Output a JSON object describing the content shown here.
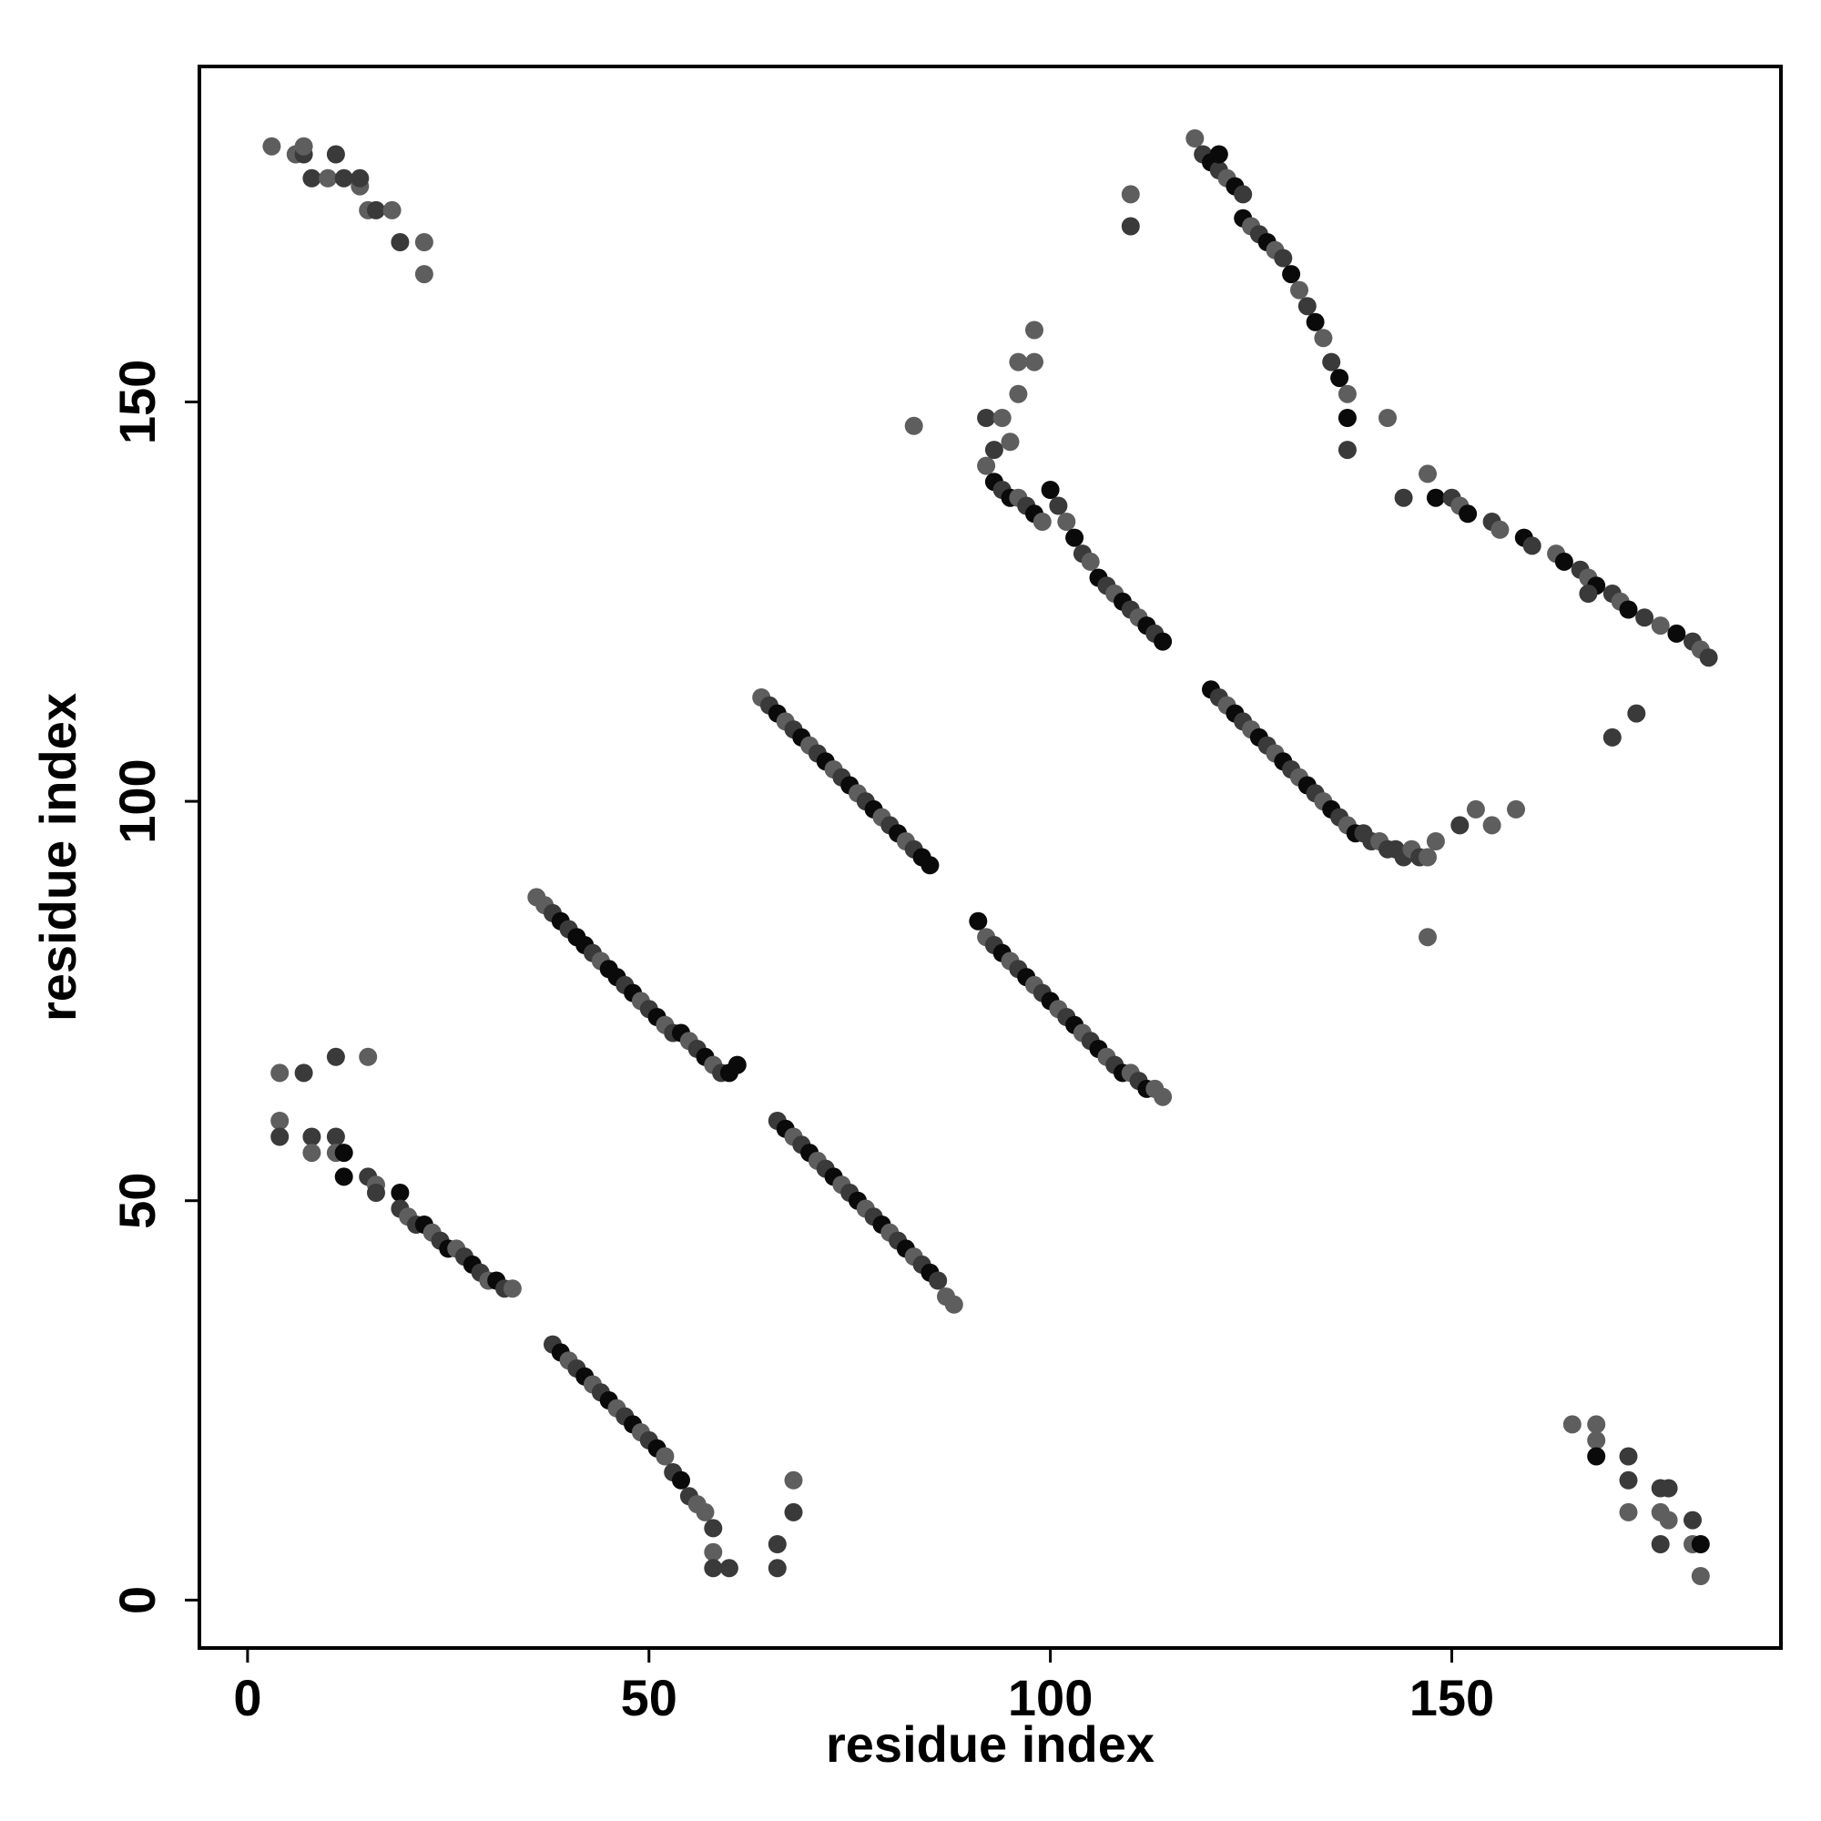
{
  "chart_data": {
    "type": "scatter",
    "title": "",
    "xlabel": "residue index",
    "ylabel": "residue index",
    "xlim": [
      -6,
      191
    ],
    "ylim": [
      -6,
      192
    ],
    "xticks": [
      0,
      50,
      100,
      150
    ],
    "yticks": [
      0,
      50,
      100,
      150
    ],
    "grid": false,
    "legend": "none",
    "colors": {
      "point_dark": "#0a0a0a",
      "point_mid": "#3a3a3a",
      "point_light": "#5e5e5e",
      "frame": "#000000"
    },
    "series": [
      {
        "x": [
          3,
          6,
          7,
          7,
          8,
          10,
          11,
          12,
          14,
          14,
          15,
          16,
          18,
          19,
          22,
          22
        ],
        "y": [
          182,
          181,
          181,
          182,
          178,
          178,
          181,
          178,
          177,
          178,
          174,
          174,
          174,
          170,
          170,
          166
        ],
        "shade": [
          2,
          2,
          1,
          2,
          1,
          2,
          1,
          1,
          2,
          1,
          2,
          1,
          2,
          1,
          2,
          2
        ]
      },
      {
        "x": [
          4,
          4,
          4,
          7,
          8,
          8,
          11,
          11,
          11,
          12,
          12,
          15,
          15,
          16,
          16,
          19,
          19,
          20,
          21,
          22,
          23,
          24,
          25,
          26,
          27,
          28,
          29,
          30,
          31,
          32,
          33
        ],
        "y": [
          66,
          60,
          58,
          66,
          58,
          56,
          68,
          58,
          56,
          56,
          53,
          68,
          53,
          52,
          51,
          51,
          49,
          48,
          47,
          47,
          46,
          45,
          44,
          44,
          43,
          42,
          41,
          40,
          40,
          39,
          39
        ],
        "shade": [
          2,
          2,
          1,
          1,
          1,
          2,
          1,
          1,
          2,
          0,
          0,
          2,
          1,
          2,
          1,
          0,
          1,
          2,
          1,
          0,
          2,
          1,
          0,
          2,
          1,
          0,
          1,
          2,
          0,
          1,
          2
        ]
      },
      {
        "x": [
          38,
          39,
          40,
          41,
          42,
          43,
          44,
          45,
          46,
          47,
          48,
          49,
          50,
          51,
          52,
          53,
          54,
          55,
          56,
          57,
          58,
          58,
          58,
          60,
          66,
          66,
          68,
          68
        ],
        "y": [
          32,
          31,
          30,
          29,
          28,
          27,
          26,
          25,
          24,
          23,
          22,
          21,
          20,
          19,
          18,
          16,
          15,
          13,
          12,
          11,
          9,
          6,
          4,
          4,
          7,
          4,
          11,
          15
        ],
        "shade": [
          1,
          0,
          2,
          1,
          0,
          2,
          1,
          0,
          2,
          1,
          0,
          2,
          1,
          0,
          2,
          1,
          0,
          1,
          2,
          2,
          1,
          2,
          1,
          1,
          1,
          1,
          1,
          2
        ]
      },
      {
        "x": [
          36,
          37,
          38,
          39,
          40,
          41,
          42,
          43,
          44,
          45,
          46,
          47,
          48,
          49,
          50,
          51,
          52,
          53,
          54,
          55,
          56,
          57,
          58,
          59,
          60,
          61
        ],
        "y": [
          88,
          87,
          86,
          85,
          84,
          83,
          82,
          81,
          80,
          79,
          78,
          77,
          76,
          75,
          74,
          73,
          72,
          71,
          71,
          70,
          69,
          68,
          67,
          66,
          66,
          67
        ],
        "shade": [
          2,
          2,
          1,
          0,
          1,
          0,
          0,
          1,
          2,
          0,
          0,
          1,
          0,
          2,
          1,
          0,
          2,
          1,
          0,
          2,
          1,
          0,
          2,
          1,
          0,
          0
        ]
      },
      {
        "x": [
          66,
          67,
          68,
          69,
          70,
          71,
          72,
          73,
          74,
          75,
          76,
          77,
          78,
          79,
          80,
          81,
          82,
          83,
          84,
          85,
          86,
          87,
          88
        ],
        "y": [
          60,
          59,
          58,
          57,
          56,
          55,
          54,
          53,
          52,
          51,
          50,
          49,
          48,
          47,
          46,
          45,
          44,
          43,
          42,
          41,
          40,
          38,
          37
        ],
        "shade": [
          1,
          0,
          2,
          1,
          0,
          2,
          1,
          0,
          2,
          1,
          0,
          2,
          1,
          0,
          2,
          1,
          0,
          2,
          1,
          0,
          1,
          2,
          2
        ]
      },
      {
        "x": [
          64,
          65,
          66,
          67,
          68,
          69,
          70,
          71,
          72,
          73,
          74,
          75,
          76,
          77,
          78,
          79,
          80,
          81,
          82,
          83,
          84,
          85
        ],
        "y": [
          113,
          112,
          111,
          110,
          109,
          108,
          107,
          106,
          105,
          104,
          103,
          102,
          101,
          100,
          99,
          98,
          97,
          96,
          95,
          94,
          93,
          92
        ],
        "shade": [
          2,
          1,
          0,
          2,
          1,
          0,
          2,
          1,
          0,
          2,
          1,
          0,
          2,
          1,
          0,
          2,
          1,
          0,
          2,
          1,
          0,
          0
        ]
      },
      {
        "x": [
          91,
          92,
          93,
          94,
          95,
          96,
          97,
          98,
          99,
          100,
          101,
          102,
          103,
          104,
          105,
          106,
          107,
          108,
          109,
          110,
          111,
          112,
          113,
          114
        ],
        "y": [
          85,
          83,
          82,
          81,
          80,
          79,
          78,
          77,
          76,
          75,
          74,
          73,
          72,
          71,
          70,
          69,
          68,
          67,
          66,
          66,
          65,
          64,
          64,
          63
        ],
        "shade": [
          0,
          2,
          1,
          0,
          2,
          1,
          0,
          2,
          1,
          0,
          2,
          1,
          0,
          2,
          1,
          0,
          2,
          1,
          0,
          2,
          1,
          0,
          2,
          2
        ]
      },
      {
        "x": [
          83,
          92,
          92,
          93,
          94,
          95,
          96,
          96,
          98,
          98,
          100,
          101,
          102,
          103,
          104,
          105,
          106,
          107,
          108,
          109,
          110,
          111,
          112,
          113,
          114
        ],
        "y": [
          147,
          148,
          142,
          144,
          148,
          145,
          151,
          155,
          155,
          159,
          139,
          137,
          135,
          133,
          131,
          130,
          128,
          127,
          126,
          125,
          124,
          123,
          122,
          121,
          120
        ],
        "shade": [
          2,
          1,
          2,
          1,
          2,
          2,
          2,
          2,
          2,
          2,
          0,
          1,
          2,
          0,
          1,
          2,
          0,
          1,
          2,
          0,
          1,
          2,
          0,
          1,
          0
        ]
      },
      {
        "x": [
          93,
          94,
          95,
          96,
          97,
          98,
          99
        ],
        "y": [
          140,
          139,
          138,
          138,
          137,
          136,
          135
        ],
        "shade": [
          0,
          1,
          0,
          2,
          1,
          0,
          2
        ]
      },
      {
        "x": [
          120,
          121,
          122,
          123,
          124,
          125,
          126,
          127,
          128,
          129,
          130,
          131,
          132,
          133,
          134,
          135,
          136,
          137,
          138,
          139,
          140,
          141,
          142,
          143,
          144,
          145,
          146,
          147,
          148,
          151,
          153,
          155,
          158
        ],
        "y": [
          114,
          113,
          112,
          111,
          110,
          109,
          108,
          107,
          106,
          105,
          104,
          103,
          102,
          101,
          100,
          99,
          98,
          97,
          96,
          96,
          95,
          95,
          94,
          94,
          93,
          94,
          93,
          93,
          95,
          97,
          99,
          97,
          99
        ],
        "shade": [
          0,
          1,
          2,
          0,
          1,
          2,
          0,
          1,
          2,
          0,
          1,
          2,
          0,
          1,
          2,
          0,
          1,
          2,
          0,
          1,
          1,
          2,
          1,
          1,
          1,
          2,
          1,
          2,
          2,
          1,
          2,
          2,
          2
        ]
      },
      {
        "x": [
          110,
          110,
          118,
          119,
          120,
          121,
          121,
          122,
          123,
          124,
          124,
          125,
          126,
          127,
          128,
          129,
          130,
          131,
          132,
          133,
          134,
          135,
          136,
          137
        ],
        "y": [
          176,
          172,
          183,
          181,
          180,
          179,
          181,
          178,
          177,
          176,
          173,
          172,
          171,
          170,
          169,
          168,
          166,
          164,
          162,
          160,
          158,
          155,
          153,
          151
        ],
        "shade": [
          2,
          1,
          2,
          1,
          0,
          1,
          0,
          2,
          0,
          1,
          0,
          2,
          1,
          0,
          2,
          1,
          0,
          2,
          1,
          0,
          2,
          1,
          0,
          2
        ]
      },
      {
        "x": [
          137,
          137,
          142,
          144,
          147,
          148,
          150,
          151,
          152,
          155,
          156,
          159,
          160,
          163,
          164,
          166,
          167,
          168,
          170,
          171,
          172,
          174,
          176,
          178,
          180,
          181,
          182
        ],
        "y": [
          148,
          144,
          148,
          138,
          141,
          138,
          138,
          137,
          136,
          135,
          134,
          133,
          132,
          131,
          130,
          129,
          128,
          127,
          126,
          125,
          124,
          123,
          122,
          121,
          120,
          119,
          118
        ],
        "shade": [
          0,
          1,
          2,
          1,
          2,
          0,
          1,
          2,
          0,
          1,
          2,
          0,
          1,
          2,
          0,
          1,
          2,
          0,
          1,
          2,
          0,
          1,
          2,
          0,
          1,
          2,
          1
        ]
      },
      {
        "x": [
          167,
          170,
          173
        ],
        "y": [
          126,
          108,
          111
        ],
        "shade": [
          1,
          1,
          1
        ]
      },
      {
        "x": [
          147,
          165,
          168,
          168,
          168,
          172,
          172,
          172,
          176,
          176,
          176,
          177,
          177,
          180,
          180,
          181,
          181
        ],
        "y": [
          83,
          22,
          22,
          20,
          18,
          18,
          15,
          11,
          14,
          11,
          7,
          14,
          10,
          10,
          7,
          7,
          3
        ],
        "shade": [
          2,
          2,
          2,
          2,
          0,
          1,
          1,
          2,
          1,
          2,
          1,
          1,
          2,
          1,
          2,
          0,
          2
        ]
      }
    ]
  }
}
